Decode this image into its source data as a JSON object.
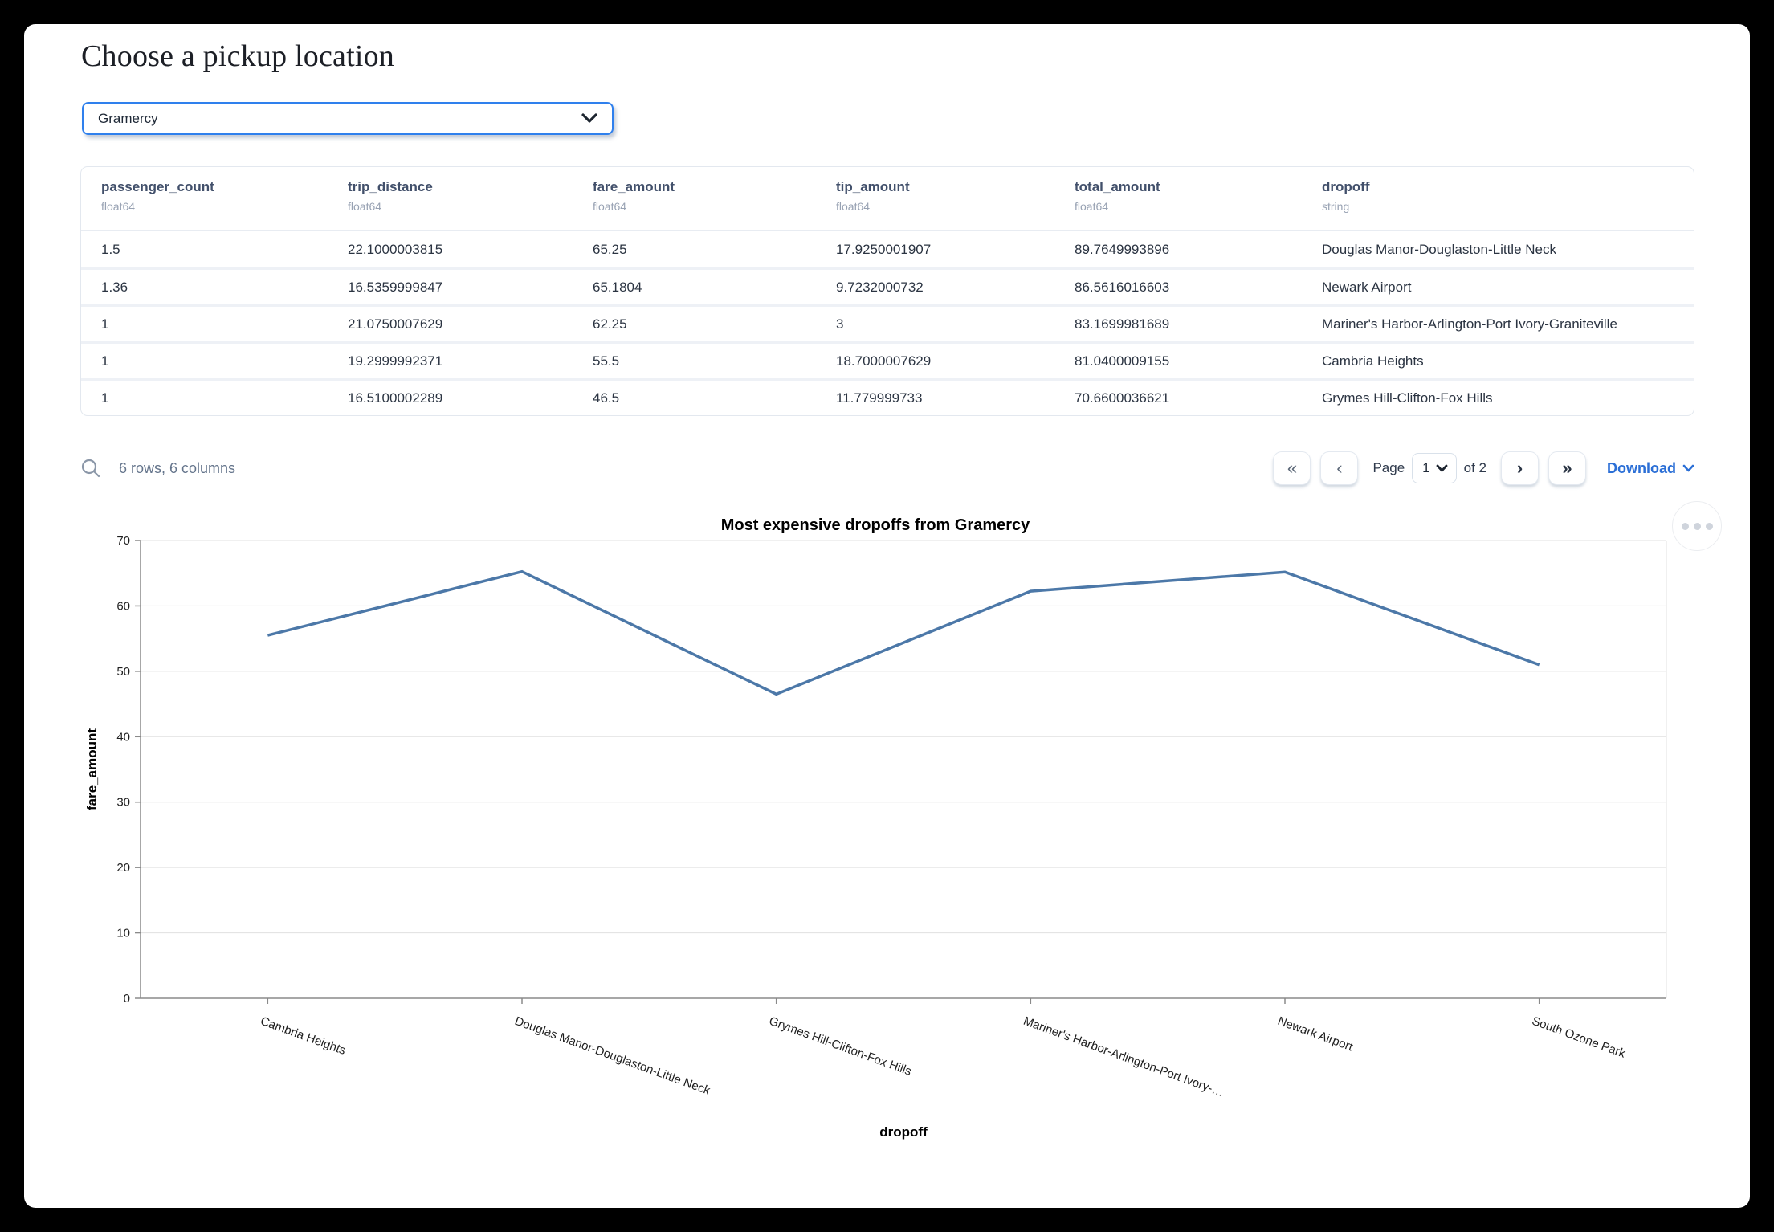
{
  "page": {
    "title": "Choose a pickup location"
  },
  "picker": {
    "value": "Gramercy"
  },
  "table": {
    "columns": [
      {
        "name": "passenger_count",
        "type": "float64"
      },
      {
        "name": "trip_distance",
        "type": "float64"
      },
      {
        "name": "fare_amount",
        "type": "float64"
      },
      {
        "name": "tip_amount",
        "type": "float64"
      },
      {
        "name": "total_amount",
        "type": "float64"
      },
      {
        "name": "dropoff",
        "type": "string"
      }
    ],
    "rows": [
      [
        "1.5",
        "22.1000003815",
        "65.25",
        "17.9250001907",
        "89.7649993896",
        "Douglas Manor-Douglaston-Little Neck"
      ],
      [
        "1.36",
        "16.5359999847",
        "65.1804",
        "9.7232000732",
        "86.5616016603",
        "Newark Airport"
      ],
      [
        "1",
        "21.0750007629",
        "62.25",
        "3",
        "83.1699981689",
        "Mariner's Harbor-Arlington-Port Ivory-Graniteville"
      ],
      [
        "1",
        "19.2999992371",
        "55.5",
        "18.7000007629",
        "81.0400009155",
        "Cambria Heights"
      ],
      [
        "1",
        "16.5100002289",
        "46.5",
        "11.779999733",
        "70.6600036621",
        "Grymes Hill-Clifton-Fox Hills"
      ]
    ],
    "footer": {
      "summary": "6 rows, 6 columns",
      "page_label": "Page",
      "page_value": "1",
      "of_label": "of 2",
      "download_label": "Download"
    }
  },
  "icons": {
    "first_page": "«",
    "prev_page": "‹",
    "next_page": "›",
    "last_page": "»"
  },
  "chart_data": {
    "type": "line",
    "title": "Most expensive dropoffs from Gramercy",
    "xlabel": "dropoff",
    "ylabel": "fare_amount",
    "categories": [
      "Cambria Heights",
      "Douglas Manor-Douglaston-Little Neck",
      "Grymes Hill-Clifton-Fox Hills",
      "Mariner's Harbor-Arlington-Port Ivory-Graniteville",
      "Newark Airport",
      "South Ozone Park"
    ],
    "tick_labels": [
      "Cambria Heights",
      "Douglas Manor-Douglaston-Little Neck",
      "Grymes Hill-Clifton-Fox Hills",
      "Mariner's Harbor-Arlington-Port Ivory-…",
      "Newark Airport",
      "South Ozone Park"
    ],
    "values": [
      55.5,
      65.25,
      46.5,
      62.25,
      65.1804,
      51
    ],
    "ylim": [
      0,
      70
    ],
    "yticks": [
      0,
      10,
      20,
      30,
      40,
      50,
      60,
      70
    ],
    "grid": true,
    "legend": "none",
    "line_color": "#4c78a8",
    "label_angle_deg": 20
  }
}
